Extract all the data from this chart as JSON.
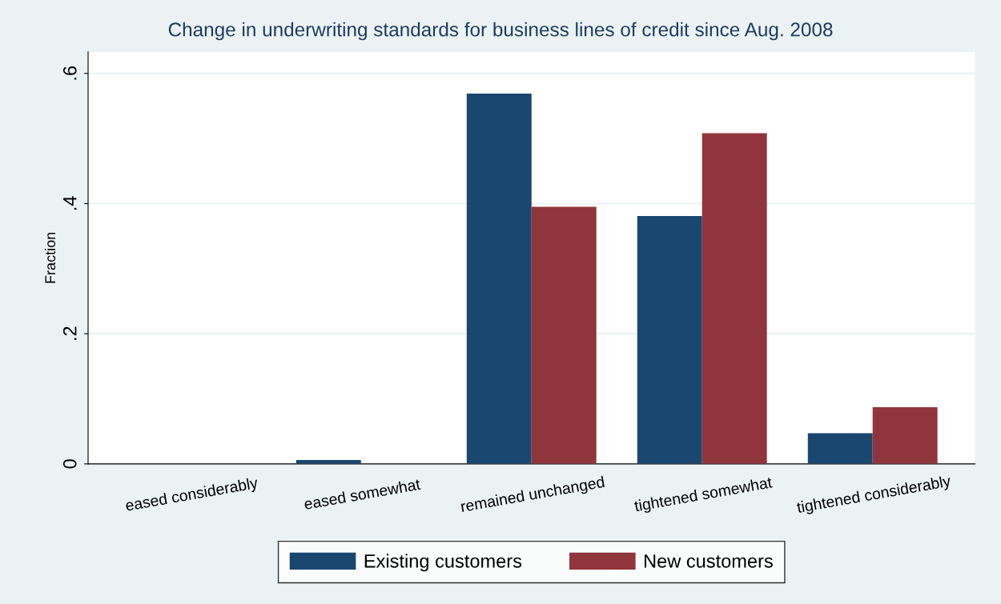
{
  "chart_data": {
    "type": "bar",
    "title": "Change in underwriting standards for business lines of credit since Aug. 2008",
    "ylabel": "Fraction",
    "categories": [
      "eased considerably",
      "eased somewhat",
      "remained unchanged",
      "tightened somewhat",
      "tightened considerably"
    ],
    "series": [
      {
        "name": "Existing customers",
        "color": "#1a476f",
        "values": [
          0,
          0.006,
          0.569,
          0.381,
          0.047
        ]
      },
      {
        "name": "New customers",
        "color": "#90353b",
        "values": [
          0,
          0,
          0.395,
          0.508,
          0.087
        ]
      }
    ],
    "ylim": [
      0,
      0.633
    ],
    "yticks": [
      0,
      {
        "value": 0.2,
        "label": ".2"
      },
      {
        "value": 0.4,
        "label": ".4"
      },
      {
        "value": 0.6,
        "label": ".6"
      }
    ],
    "grid": "y",
    "legend": "bottom"
  }
}
